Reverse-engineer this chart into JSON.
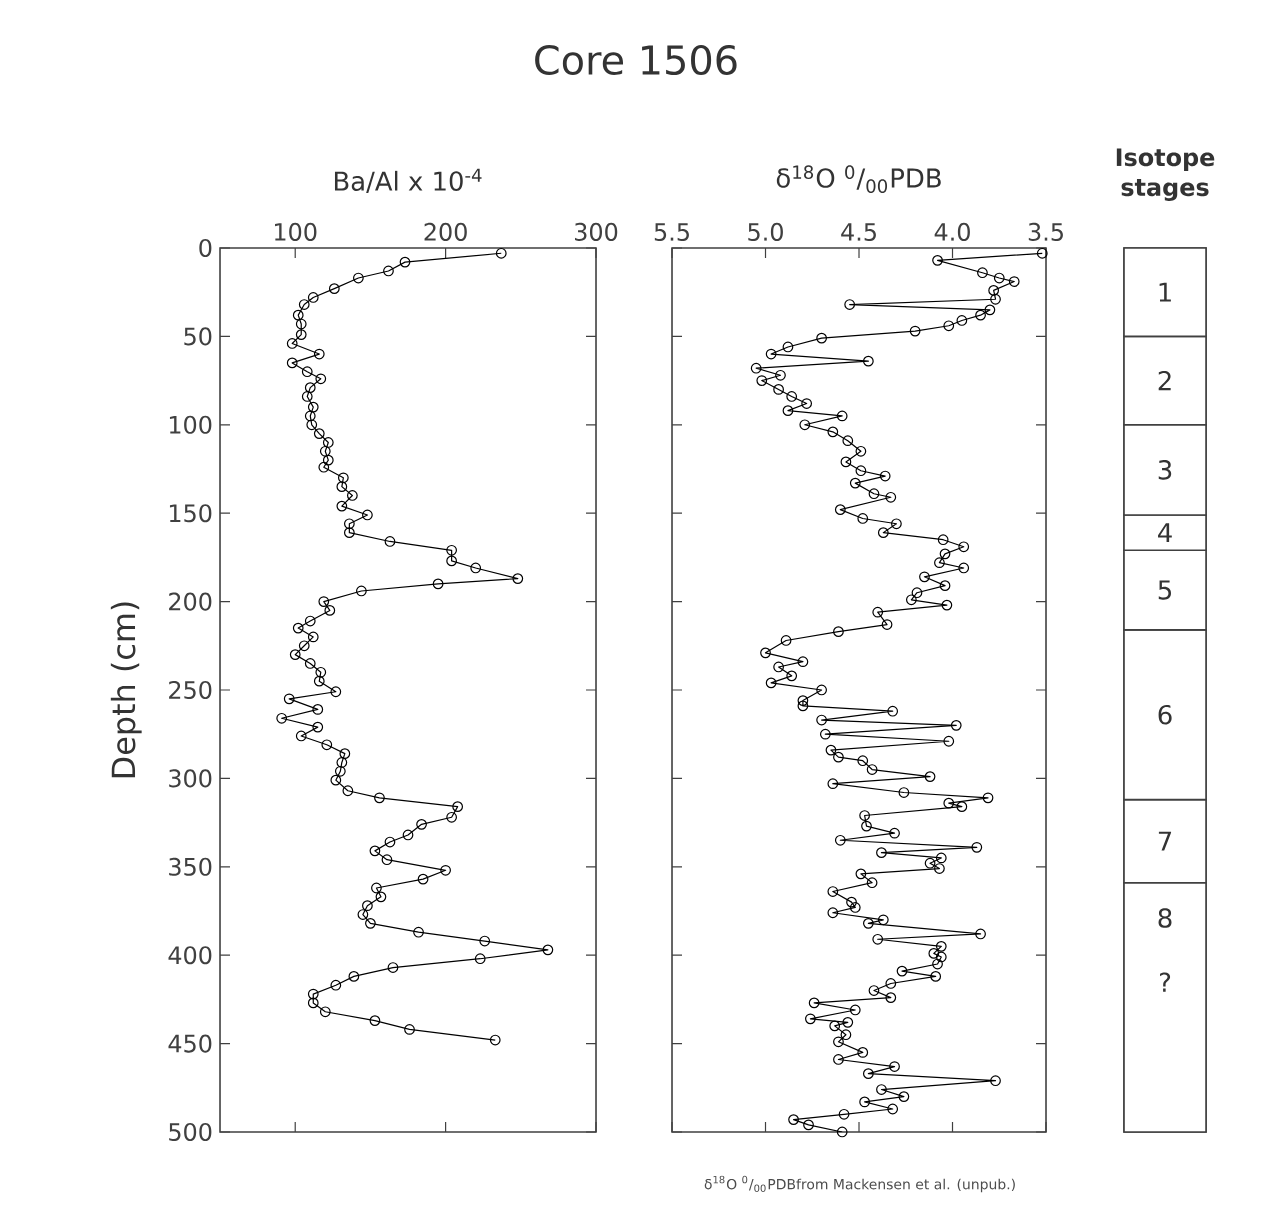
{
  "chart_data": [
    {
      "type": "line",
      "title": "Core 1506",
      "xlabel": "Ba/Al x 10$^{-4}$",
      "ylabel": "Depth (cm)",
      "color": "#000000",
      "marker": "circle",
      "line_style": "solid",
      "x": [
        237,
        173,
        162,
        142,
        126,
        112,
        106,
        102,
        104,
        104,
        98,
        116,
        98,
        108,
        117,
        110,
        108,
        112,
        110,
        111,
        116,
        122,
        120,
        122,
        119,
        132,
        131,
        138,
        131,
        148,
        136,
        136,
        163,
        204,
        204,
        220,
        248,
        195,
        144,
        119,
        123,
        110,
        102,
        112,
        106,
        100,
        110,
        117,
        116,
        127,
        96,
        115,
        91,
        115,
        104,
        121,
        133,
        131,
        130,
        127,
        135,
        156,
        208,
        204,
        184,
        175,
        163,
        153,
        161,
        200,
        185,
        154,
        157,
        148,
        145,
        150,
        182,
        226,
        268,
        223,
        165,
        139,
        127,
        112,
        112,
        120,
        153,
        176,
        233
      ],
      "values": [
        3,
        8,
        13,
        17,
        23,
        28,
        32,
        38,
        43,
        49,
        54,
        60,
        65,
        70,
        74,
        79,
        84,
        90,
        95,
        100,
        105,
        110,
        115,
        120,
        124,
        130,
        135,
        140,
        146,
        151,
        156,
        161,
        166,
        171,
        177,
        181,
        187,
        190,
        194,
        200,
        205,
        211,
        215,
        220,
        225,
        230,
        235,
        240,
        245,
        251,
        255,
        261,
        266,
        271,
        276,
        281,
        286,
        291,
        296,
        301,
        307,
        311,
        316,
        322,
        326,
        332,
        336,
        341,
        346,
        352,
        357,
        362,
        367,
        372,
        377,
        382,
        387,
        392,
        397,
        402,
        407,
        412,
        417,
        422,
        427,
        432,
        437,
        442,
        448
      ],
      "xlim": [
        50,
        300
      ],
      "xticks": [
        100,
        200,
        300
      ],
      "ylim": [
        500,
        0
      ],
      "yticks": [
        0,
        50,
        100,
        150,
        200,
        250,
        300,
        350,
        400,
        450,
        500
      ]
    },
    {
      "type": "line",
      "xlabel": "δ$^{18}$O $^{0}$/$_{00}$PDB",
      "color": "#000000",
      "marker": "circle",
      "line_style": "solid",
      "tick_labels": "x",
      "x": [
        3.52,
        4.08,
        3.84,
        3.75,
        3.67,
        3.78,
        3.77,
        4.55,
        3.8,
        3.85,
        3.95,
        4.02,
        4.2,
        4.7,
        4.88,
        4.97,
        4.45,
        5.05,
        4.92,
        5.02,
        4.93,
        4.86,
        4.78,
        4.88,
        4.59,
        4.79,
        4.64,
        4.56,
        4.49,
        4.57,
        4.49,
        4.36,
        4.52,
        4.42,
        4.33,
        4.6,
        4.48,
        4.3,
        4.37,
        4.05,
        3.94,
        4.04,
        4.07,
        3.94,
        4.15,
        4.04,
        4.19,
        4.22,
        4.03,
        4.4,
        4.35,
        4.61,
        4.89,
        5.0,
        4.8,
        4.93,
        4.86,
        4.97,
        4.7,
        4.8,
        4.8,
        4.32,
        4.7,
        3.98,
        4.68,
        4.02,
        4.65,
        4.61,
        4.48,
        4.43,
        4.12,
        4.64,
        4.26,
        3.81,
        4.02,
        3.95,
        4.47,
        4.46,
        4.31,
        4.6,
        3.87,
        4.38,
        4.06,
        4.12,
        4.07,
        4.49,
        4.43,
        4.64,
        4.54,
        4.52,
        4.64,
        4.37,
        4.45,
        3.85,
        4.4,
        4.06,
        4.1,
        4.06,
        4.08,
        4.27,
        4.09,
        4.33,
        4.42,
        4.33,
        4.74,
        4.52,
        4.76,
        4.56,
        4.63,
        4.57,
        4.61,
        4.48,
        4.61,
        4.31,
        4.45,
        3.77,
        4.38,
        4.26,
        4.47,
        4.32,
        4.58,
        4.85,
        4.77,
        4.59
      ],
      "values": [
        3,
        7,
        14,
        17,
        19,
        24,
        29,
        32,
        35,
        38,
        41,
        44,
        47,
        51,
        56,
        60,
        64,
        68,
        72,
        75,
        80,
        84,
        88,
        92,
        95,
        100,
        104,
        109,
        115,
        121,
        126,
        129,
        133,
        139,
        141,
        148,
        153,
        156,
        161,
        165,
        169,
        173,
        178,
        181,
        186,
        191,
        195,
        199,
        202,
        206,
        213,
        217,
        222,
        229,
        234,
        237,
        242,
        246,
        250,
        256,
        259,
        262,
        267,
        270,
        275,
        279,
        284,
        288,
        290,
        295,
        299,
        303,
        308,
        311,
        314,
        316,
        321,
        327,
        331,
        335,
        339,
        342,
        345,
        348,
        351,
        354,
        359,
        364,
        370,
        373,
        376,
        380,
        382,
        388,
        391,
        395,
        399,
        401,
        405,
        409,
        412,
        416,
        420,
        424,
        427,
        431,
        436,
        438,
        440,
        445,
        449,
        455,
        459,
        463,
        467,
        471,
        476,
        480,
        483,
        487,
        490,
        493,
        496,
        500
      ],
      "xlim": [
        5.5,
        3.5
      ],
      "xticks": [
        {
          "value": 5.5,
          "label": "5.5"
        },
        {
          "value": 5.0,
          "label": "5.0"
        },
        {
          "value": 4.5,
          "label": "4.5"
        },
        {
          "value": 4.0,
          "label": "4.0"
        },
        {
          "value": 3.5,
          "label": "3.5"
        }
      ],
      "ylim": [
        500,
        0
      ],
      "yticks": [
        0,
        50,
        100,
        150,
        200,
        250,
        300,
        350,
        400,
        450,
        500
      ],
      "annotations": [
        "δ$^{18}$O $^{0}$/$_{00}$PDBfrom Mackensen et al. (unpub.)"
      ]
    },
    {
      "type": "bar",
      "stacked": true,
      "title": "Isotope stages",
      "tick_labels": false,
      "ylim": [
        500,
        0
      ],
      "categories": [
        null
      ],
      "series": [
        {
          "name": "1",
          "color": "#ffffff",
          "values": [
            50
          ]
        },
        {
          "name": "2",
          "color": "#ffffff",
          "values": [
            50
          ]
        },
        {
          "name": "3",
          "color": "#ffffff",
          "values": [
            51
          ]
        },
        {
          "name": "4",
          "color": "#ffffff",
          "values": [
            20
          ]
        },
        {
          "name": "5",
          "color": "#ffffff",
          "values": [
            45
          ]
        },
        {
          "name": "6",
          "color": "#ffffff",
          "values": [
            96
          ]
        },
        {
          "name": "7",
          "color": "#ffffff",
          "values": [
            47
          ]
        },
        {
          "name": "8",
          "color": "#ffffff",
          "values": [
            141
          ]
        }
      ],
      "annotations": [
        "?"
      ]
    }
  ]
}
